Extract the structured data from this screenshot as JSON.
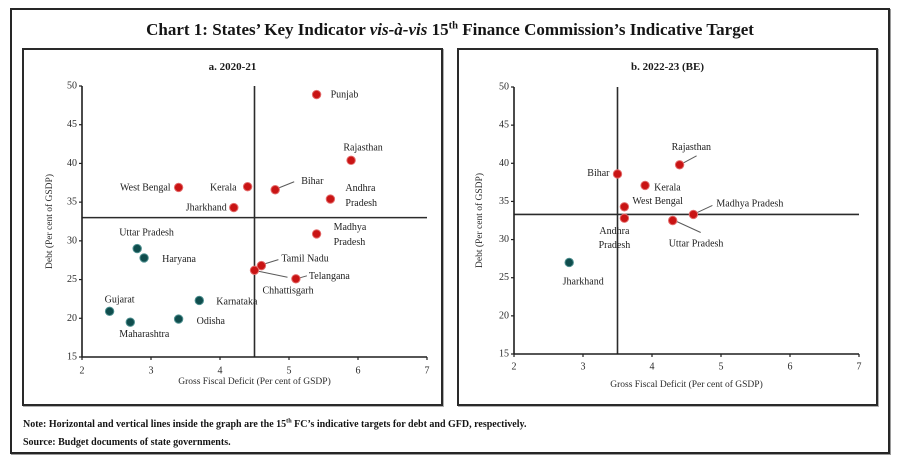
{
  "title": {
    "part1": "Chart 1: States’ Key Indicator ",
    "italic": "vis-à-vis",
    "part2": " 15",
    "sup": "th",
    "part3": " Finance Commission’s Indicative Target"
  },
  "footnote": {
    "note_label": "Note:",
    "note_part1": " Horizontal and vertical lines inside the graph are the 15",
    "note_sup": "th",
    "note_part2": " FC’s indicative targets for debt and GFD, respectively.",
    "source_label": "Source:",
    "source_text": " Budget documents of state governments."
  },
  "colors": {
    "red": "#c91414",
    "teal": "#0f4d4d",
    "target_line": "#2b2b2b"
  },
  "chart_data": [
    {
      "type": "scatter",
      "title": "a. 2020-21",
      "xlabel": "Gross Fiscal Deficit (Per cent of GSDP)",
      "ylabel": "Debt (Per cent of GSDP)",
      "xlim": [
        2,
        7
      ],
      "ylim": [
        15,
        50
      ],
      "xticks": [
        2,
        3,
        4,
        5,
        6,
        7
      ],
      "yticks": [
        15,
        20,
        25,
        30,
        35,
        40,
        45,
        50
      ],
      "grid": false,
      "target_lines": {
        "gfd": 4.5,
        "debt": 33.0
      },
      "points": [
        {
          "state": "Punjab",
          "label_lines": [
            "Punjab"
          ],
          "gfd": 5.4,
          "debt": 48.9,
          "marker": "red"
        },
        {
          "state": "Rajasthan",
          "label_lines": [
            "Rajasthan"
          ],
          "gfd": 5.9,
          "debt": 40.4,
          "marker": "red"
        },
        {
          "state": "West Bengal",
          "label_lines": [
            "West Bengal"
          ],
          "gfd": 3.4,
          "debt": 36.9,
          "marker": "red"
        },
        {
          "state": "Kerala",
          "label_lines": [
            "Kerala"
          ],
          "gfd": 4.4,
          "debt": 37.0,
          "marker": "red"
        },
        {
          "state": "Bihar",
          "label_lines": [
            "Bihar"
          ],
          "gfd": 4.8,
          "debt": 36.6,
          "marker": "red"
        },
        {
          "state": "Andhra Pradesh",
          "label_lines": [
            "Andhra",
            "Pradesh"
          ],
          "gfd": 5.6,
          "debt": 35.4,
          "marker": "red"
        },
        {
          "state": "Jharkhand",
          "label_lines": [
            "Jharkhand"
          ],
          "gfd": 4.2,
          "debt": 34.3,
          "marker": "red"
        },
        {
          "state": "Madhya Pradesh",
          "label_lines": [
            "Madhya",
            "Pradesh"
          ],
          "gfd": 5.4,
          "debt": 30.9,
          "marker": "red"
        },
        {
          "state": "Uttar Pradesh",
          "label_lines": [
            "Uttar Pradesh"
          ],
          "gfd": 2.8,
          "debt": 29.0,
          "marker": "teal"
        },
        {
          "state": "Haryana",
          "label_lines": [
            "Haryana"
          ],
          "gfd": 2.9,
          "debt": 27.8,
          "marker": "teal"
        },
        {
          "state": "Tamil Nadu",
          "label_lines": [
            "Tamil Nadu"
          ],
          "gfd": 4.6,
          "debt": 26.8,
          "marker": "red"
        },
        {
          "state": "Chhattisgarh",
          "label_lines": [
            "Chhattisgarh"
          ],
          "gfd": 4.5,
          "debt": 26.2,
          "marker": "red"
        },
        {
          "state": "Telangana",
          "label_lines": [
            "Telangana"
          ],
          "gfd": 5.1,
          "debt": 25.1,
          "marker": "red"
        },
        {
          "state": "Karnataka",
          "label_lines": [
            "Karnataka"
          ],
          "gfd": 3.7,
          "debt": 22.3,
          "marker": "teal"
        },
        {
          "state": "Gujarat",
          "label_lines": [
            "Gujarat"
          ],
          "gfd": 2.4,
          "debt": 20.9,
          "marker": "teal"
        },
        {
          "state": "Odisha",
          "label_lines": [
            "Odisha"
          ],
          "gfd": 3.4,
          "debt": 19.9,
          "marker": "teal"
        },
        {
          "state": "Maharashtra",
          "label_lines": [
            "Maharashtra"
          ],
          "gfd": 2.7,
          "debt": 19.5,
          "marker": "teal"
        }
      ]
    },
    {
      "type": "scatter",
      "title": "b. 2022-23 (BE)",
      "xlabel": "Gross Fiscal Deficit (Per cent of GSDP)",
      "ylabel": "Debt (Per cent of GSDP)",
      "xlim": [
        2,
        7
      ],
      "ylim": [
        15,
        50
      ],
      "xticks": [
        2,
        3,
        4,
        5,
        6,
        7
      ],
      "yticks": [
        15,
        20,
        25,
        30,
        35,
        40,
        45,
        50
      ],
      "grid": false,
      "target_lines": {
        "gfd": 3.5,
        "debt": 33.3
      },
      "points": [
        {
          "state": "Bihar",
          "label_lines": [
            "Bihar"
          ],
          "gfd": 3.5,
          "debt": 38.6,
          "marker": "red"
        },
        {
          "state": "Rajasthan",
          "label_lines": [
            "Rajasthan"
          ],
          "gfd": 4.4,
          "debt": 39.8,
          "marker": "red"
        },
        {
          "state": "Kerala",
          "label_lines": [
            "Kerala"
          ],
          "gfd": 3.9,
          "debt": 37.1,
          "marker": "red"
        },
        {
          "state": "West Bengal",
          "label_lines": [
            "West Bengal"
          ],
          "gfd": 3.6,
          "debt": 34.3,
          "marker": "red"
        },
        {
          "state": "Madhya Pradesh",
          "label_lines": [
            "Madhya Pradesh"
          ],
          "gfd": 4.6,
          "debt": 33.3,
          "marker": "red"
        },
        {
          "state": "Andhra Pradesh",
          "label_lines": [
            "Andhra",
            "Pradesh"
          ],
          "gfd": 3.6,
          "debt": 32.8,
          "marker": "red"
        },
        {
          "state": "Uttar Pradesh",
          "label_lines": [
            "Uttar Pradesh"
          ],
          "gfd": 4.3,
          "debt": 32.5,
          "marker": "red"
        },
        {
          "state": "Jharkhand",
          "label_lines": [
            "Jharkhand"
          ],
          "gfd": 2.8,
          "debt": 27.0,
          "marker": "teal"
        }
      ]
    }
  ]
}
